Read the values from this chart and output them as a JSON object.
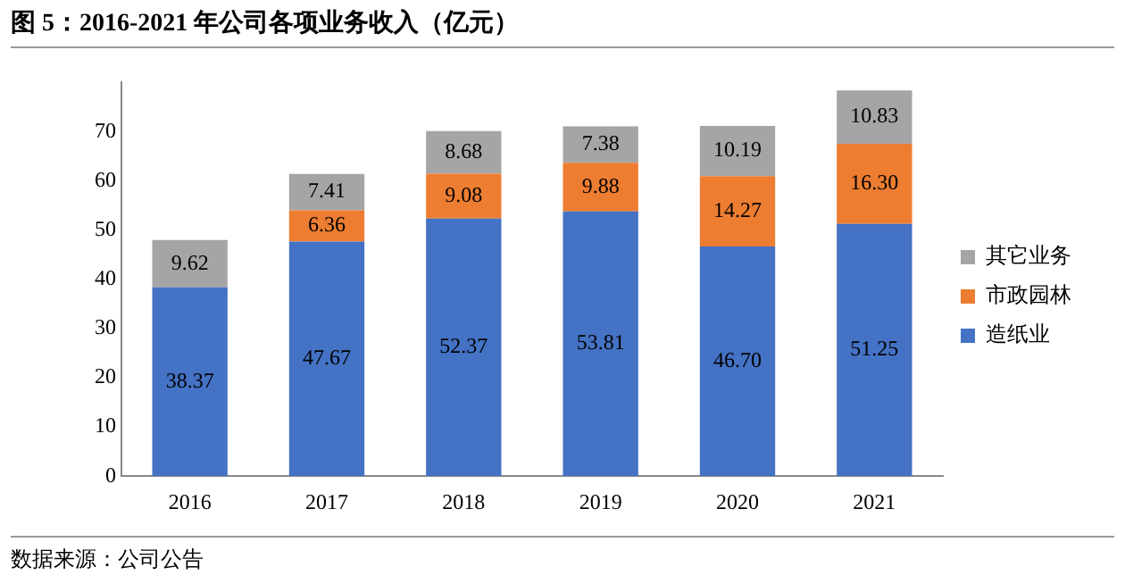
{
  "chart_data": {
    "type": "bar",
    "title": "图 5：2016-2021 年公司各项业务收入（亿元）",
    "annotations": [
      "数据来源：公司公告"
    ],
    "categories": [
      "2016",
      "2017",
      "2018",
      "2019",
      "2020",
      "2021"
    ],
    "series": [
      {
        "name": "造纸业",
        "color": "#4472c4",
        "values": [
          38.37,
          47.67,
          52.37,
          53.81,
          46.7,
          51.25
        ],
        "value_labels": [
          "38.37",
          "47.67",
          "52.37",
          "53.81",
          "46.70",
          "51.25"
        ]
      },
      {
        "name": "市政园林",
        "color": "#ed7d31",
        "values": [
          null,
          6.36,
          9.08,
          9.88,
          14.27,
          16.3
        ],
        "value_labels": [
          null,
          "6.36",
          "9.08",
          "9.88",
          "14.27",
          "16.30"
        ]
      },
      {
        "name": "其它业务",
        "color": "#a5a5a5",
        "values": [
          9.62,
          7.41,
          8.68,
          7.38,
          10.19,
          10.83
        ],
        "value_labels": [
          "9.62",
          "7.41",
          "8.68",
          "7.38",
          "10.19",
          "10.83"
        ]
      }
    ],
    "stacked": true,
    "ylim": [
      0,
      80
    ],
    "yticks": [
      0,
      10,
      20,
      30,
      40,
      50,
      60,
      70
    ],
    "grid": false,
    "legend": "right"
  }
}
